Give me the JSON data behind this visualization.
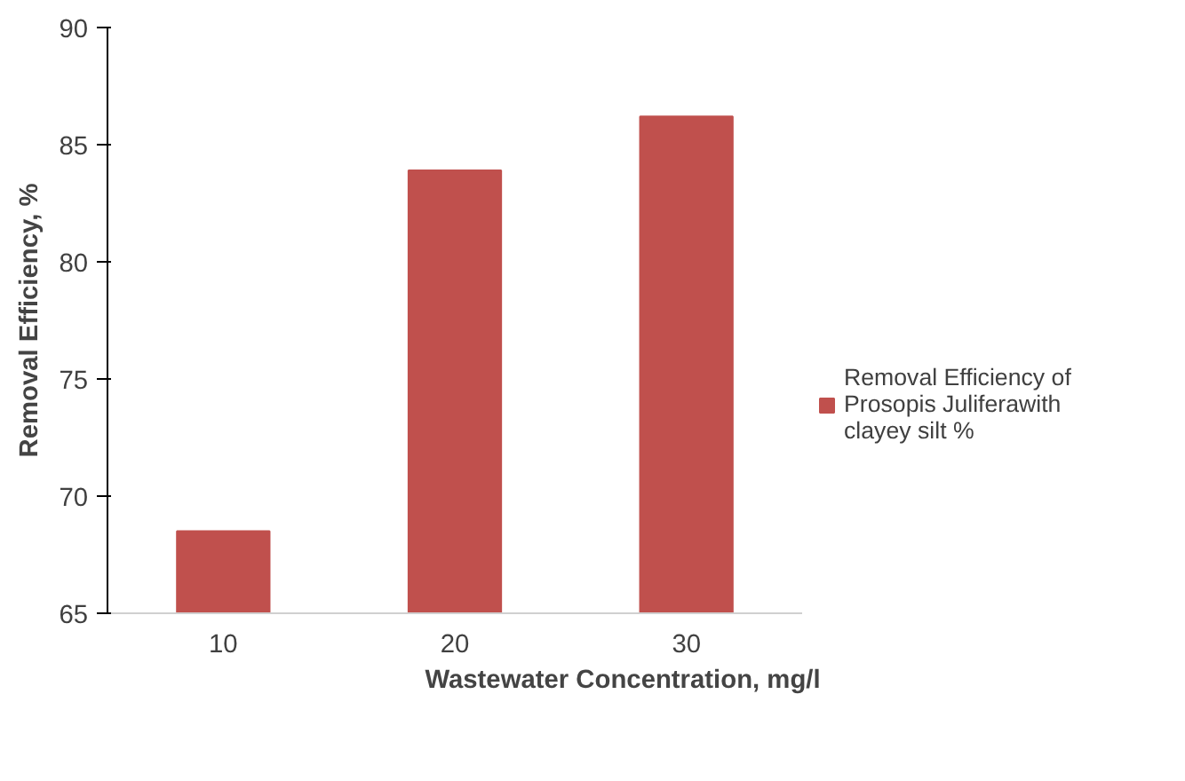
{
  "chart_data": {
    "type": "bar",
    "xlabel": "Wastewater Concentration, mg/l",
    "ylabel": "Removal Efficiency, %",
    "categories": [
      "10",
      "20",
      "30"
    ],
    "series": [
      {
        "name": "Removal Efficiency of Prosopis Juliferawith clayey silt %",
        "color": "#c0504d",
        "values": [
          68.5,
          83.9,
          86.2
        ]
      }
    ],
    "ylim": [
      65,
      90
    ],
    "yticks": [
      65,
      70,
      75,
      80,
      85,
      90
    ],
    "grid": false,
    "legend": "right"
  }
}
